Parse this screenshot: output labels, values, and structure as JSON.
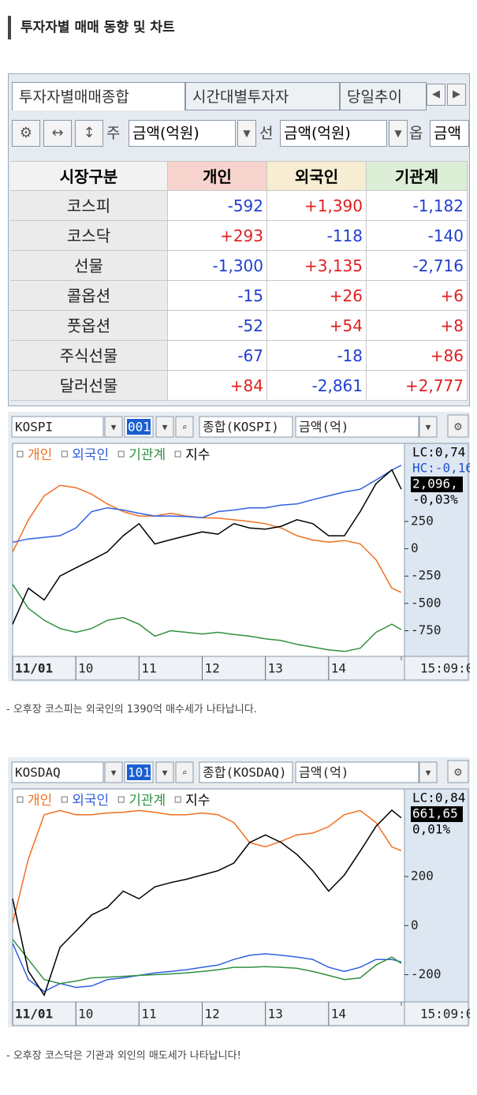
{
  "header": {
    "title": "투자자별 매매 동향 및 차트"
  },
  "table": {
    "tabs": [
      "투자자별매매종합",
      "시간대별투자자",
      "당일추이"
    ],
    "toolbar": [
      "주",
      "금액(억원)",
      "선",
      "금액(억원)",
      "옵",
      "금액"
    ],
    "columns": [
      "시장구분",
      "개인",
      "외국인",
      "기관계"
    ],
    "rows": [
      [
        "코스피",
        "-592",
        "+1,390",
        "-1,182"
      ],
      [
        "코스닥",
        "+293",
        "-118",
        "-140"
      ],
      [
        "선물",
        "-1,300",
        "+3,135",
        "-2,716"
      ],
      [
        "콜옵션",
        "-15",
        "+26",
        "+6"
      ],
      [
        "풋옵션",
        "-52",
        "+54",
        "+8"
      ],
      [
        "주식선물",
        "-67",
        "-18",
        "+86"
      ],
      [
        "달러선물",
        "+84",
        "-2,861",
        "+2,777"
      ]
    ]
  },
  "chart_data": [
    {
      "type": "line",
      "toolbar": [
        "KOSPI",
        "001",
        "종합(KOSPI)",
        "금액(억)"
      ],
      "annotations": [
        {
          "text": "LC:0,74",
          "color": "#000000"
        },
        {
          "text": "HC:-0,16",
          "color": "#2050d0"
        },
        {
          "text": "2,096,",
          "color": "#ffffff",
          "box": true
        },
        {
          "text": "-0,03%",
          "color": "#000000"
        }
      ],
      "x": [
        9.0,
        9.25,
        9.5,
        9.75,
        10.0,
        10.25,
        10.5,
        10.75,
        11.0,
        11.25,
        11.5,
        11.75,
        12.0,
        12.25,
        12.5,
        12.75,
        13.0,
        13.25,
        13.5,
        13.75,
        14.0,
        14.25,
        14.5,
        14.75,
        15.0,
        15.15
      ],
      "xlim": [
        9,
        15.2
      ],
      "xticks": [
        {
          "value": 9,
          "label": "11/01"
        },
        10,
        11,
        12,
        13,
        14,
        {
          "value": 15.15,
          "label": "15:09:0"
        }
      ],
      "ylim": [
        -985,
        965
      ],
      "yticks": [
        250,
        0,
        -250,
        -500,
        -750
      ],
      "y2lim": [
        2040,
        2105
      ],
      "series": [
        {
          "name": "개인",
          "color": "#f07020",
          "values": [
            -30,
            265,
            485,
            580,
            560,
            500,
            410,
            340,
            300,
            300,
            325,
            300,
            285,
            280,
            265,
            250,
            230,
            190,
            120,
            80,
            60,
            75,
            45,
            -100,
            -360,
            -400
          ]
        },
        {
          "name": "외국인",
          "color": "#3060e0",
          "values": [
            60,
            90,
            105,
            120,
            190,
            340,
            375,
            355,
            325,
            300,
            300,
            295,
            285,
            340,
            355,
            375,
            375,
            400,
            410,
            450,
            485,
            520,
            545,
            630,
            720,
            765
          ]
        },
        {
          "name": "기관계",
          "color": "#309040",
          "values": [
            -325,
            -545,
            -655,
            -730,
            -765,
            -730,
            -655,
            -630,
            -690,
            -800,
            -750,
            -765,
            -780,
            -765,
            -785,
            -800,
            -825,
            -840,
            -875,
            -900,
            -925,
            -940,
            -910,
            -765,
            -690,
            -740
          ]
        },
        {
          "name": "지수",
          "color": "#000000",
          "axis": "y2",
          "values": [
            2049.8,
            2060.8,
            2057.2,
            2064.5,
            2067.0,
            2069.4,
            2071.9,
            2076.8,
            2080.5,
            2074.3,
            2075.6,
            2076.8,
            2078.0,
            2077.3,
            2080.5,
            2079.2,
            2078.8,
            2079.7,
            2081.7,
            2080.5,
            2076.8,
            2076.8,
            2084.2,
            2092.7,
            2096.9,
            2091.0
          ]
        }
      ],
      "caption": "- 오후장 코스피는 외국인의 1390억 매수세가 나타납니다."
    },
    {
      "type": "line",
      "toolbar": [
        "KOSDAQ",
        "101",
        "종합(KOSDAQ)",
        "금액(억)"
      ],
      "annotations": [
        {
          "text": "LC:0,84",
          "color": "#000000"
        },
        {
          "text": "661,65",
          "color": "#ffffff",
          "box": true
        },
        {
          "text": "0,01%",
          "color": "#000000"
        }
      ],
      "x": [
        9.0,
        9.25,
        9.5,
        9.75,
        10.0,
        10.25,
        10.5,
        10.75,
        11.0,
        11.25,
        11.5,
        11.75,
        12.0,
        12.25,
        12.5,
        12.75,
        13.0,
        13.25,
        13.5,
        13.75,
        14.0,
        14.25,
        14.5,
        14.75,
        15.0,
        15.15
      ],
      "xlim": [
        9,
        15.2
      ],
      "xticks": [
        {
          "value": 9,
          "label": "11/01"
        },
        10,
        11,
        12,
        13,
        14,
        {
          "value": 15.15,
          "label": "15:09:0"
        }
      ],
      "ylim": [
        -311,
        557
      ],
      "yticks": [
        200,
        0,
        -200
      ],
      "y2lim": [
        640,
        665
      ],
      "series": [
        {
          "name": "개인",
          "color": "#f07020",
          "values": [
            10,
            272,
            452,
            469,
            452,
            452,
            459,
            462,
            469,
            462,
            452,
            452,
            459,
            452,
            420,
            338,
            321,
            344,
            370,
            377,
            403,
            452,
            469,
            420,
            321,
            305
          ]
        },
        {
          "name": "외국인",
          "color": "#3060e0",
          "values": [
            -72,
            -220,
            -269,
            -236,
            -252,
            -246,
            -220,
            -213,
            -203,
            -193,
            -187,
            -180,
            -170,
            -161,
            -138,
            -121,
            -115,
            -121,
            -128,
            -138,
            -170,
            -187,
            -170,
            -138,
            -138,
            -148
          ]
        },
        {
          "name": "기관계",
          "color": "#309040",
          "values": [
            -56,
            -138,
            -220,
            -236,
            -226,
            -213,
            -210,
            -207,
            -203,
            -200,
            -197,
            -193,
            -187,
            -180,
            -170,
            -170,
            -167,
            -170,
            -174,
            -187,
            -203,
            -220,
            -213,
            -161,
            -128,
            -154
          ]
        },
        {
          "name": "지수",
          "color": "#000000",
          "axis": "y2",
          "values": [
            652.1,
            643.6,
            640.8,
            646.4,
            648.3,
            650.2,
            651.1,
            653.0,
            652.1,
            653.5,
            654.0,
            654.4,
            654.9,
            655.4,
            656.3,
            658.7,
            659.6,
            658.7,
            657.3,
            655.4,
            653.0,
            654.9,
            657.7,
            660.6,
            662.5,
            661.6
          ]
        }
      ],
      "caption": "- 오후장 코스닥은 기관과 외인의 매도세가 나타납니다!"
    }
  ]
}
